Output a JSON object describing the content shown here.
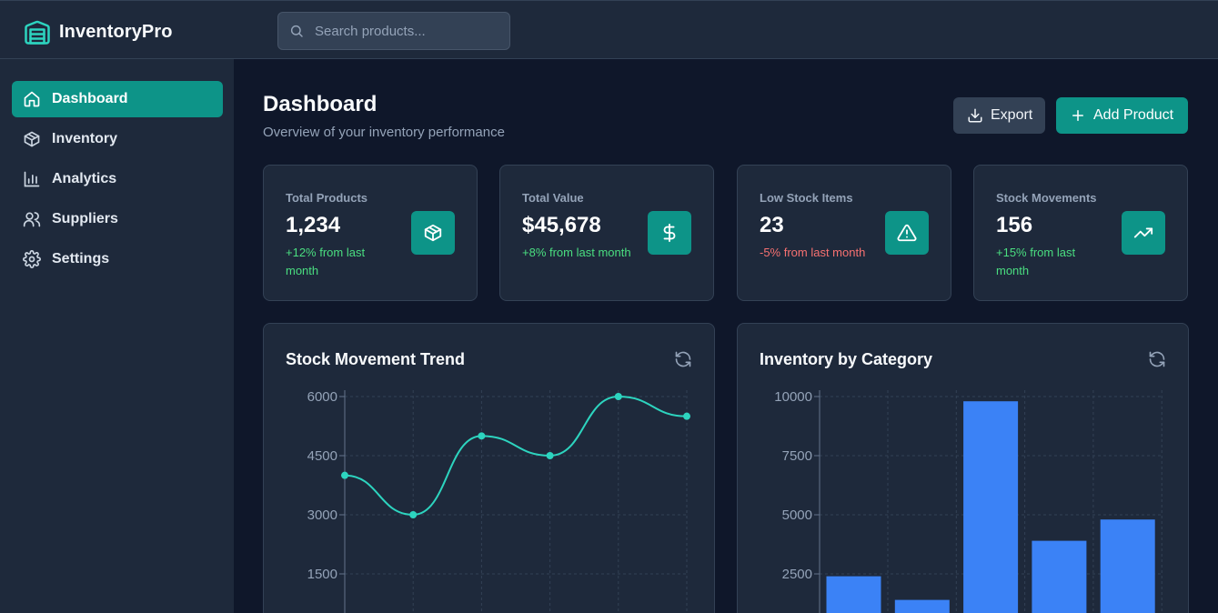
{
  "app": {
    "name": "InventoryPro",
    "logo_icon": "warehouse-icon",
    "accent": "#0d9488",
    "accent_light": "#2dd4bf",
    "bar_color": "#3b82f6"
  },
  "search": {
    "placeholder": "Search products...",
    "value": ""
  },
  "sidebar": {
    "items": [
      {
        "label": "Dashboard",
        "icon": "home-icon",
        "active": true
      },
      {
        "label": "Inventory",
        "icon": "box-icon",
        "active": false
      },
      {
        "label": "Analytics",
        "icon": "bar-chart-icon",
        "active": false
      },
      {
        "label": "Suppliers",
        "icon": "users-icon",
        "active": false
      },
      {
        "label": "Settings",
        "icon": "gear-icon",
        "active": false
      }
    ]
  },
  "header": {
    "title": "Dashboard",
    "subtitle": "Overview of your inventory performance",
    "export_label": "Export",
    "add_label": "Add Product"
  },
  "stats": [
    {
      "title": "Total Products",
      "value": "1,234",
      "change": "+12% from last month",
      "trend": "positive",
      "icon": "box-icon"
    },
    {
      "title": "Total Value",
      "value": "$45,678",
      "change": "+8% from last month",
      "trend": "positive",
      "icon": "dollar-icon"
    },
    {
      "title": "Low Stock Items",
      "value": "23",
      "change": "-5% from last month",
      "trend": "negative",
      "icon": "warning-icon"
    },
    {
      "title": "Stock Movements",
      "value": "156",
      "change": "+15% from last month",
      "trend": "positive",
      "icon": "trending-up-icon"
    }
  ],
  "chart_data": [
    {
      "type": "line",
      "title": "Stock Movement Trend",
      "x": [
        0,
        1,
        2,
        3,
        4,
        5
      ],
      "values": [
        4000,
        3000,
        5000,
        4500,
        6000,
        5500
      ],
      "yticks": [
        6000,
        4500,
        3000,
        1500
      ],
      "ylim": [
        0,
        6000
      ],
      "grid": true,
      "color": "#2dd4bf"
    },
    {
      "type": "bar",
      "title": "Inventory by Category",
      "x": [
        0,
        1,
        2,
        3,
        4
      ],
      "values": [
        2400,
        1400,
        9800,
        3900,
        4800
      ],
      "yticks": [
        10000,
        7500,
        5000,
        2500
      ],
      "ylim": [
        0,
        10000
      ],
      "grid": true,
      "color": "#3b82f6"
    }
  ]
}
